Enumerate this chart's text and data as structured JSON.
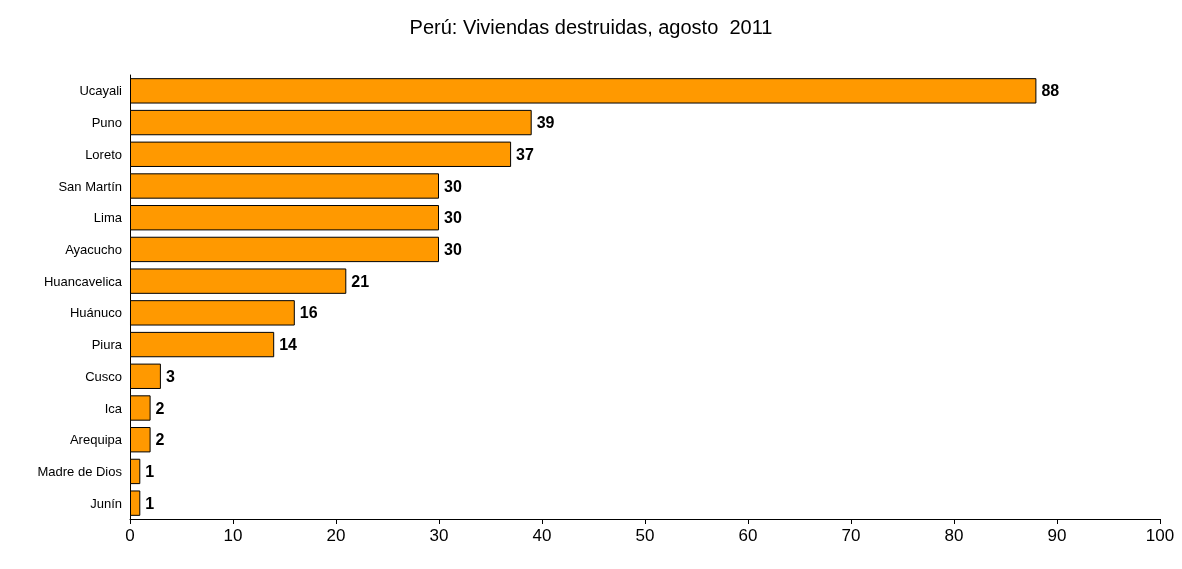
{
  "chart_data": {
    "type": "bar",
    "orientation": "horizontal",
    "title": "Perú: Viviendas destruidas, agosto  2011",
    "categories": [
      "Ucayali",
      "Puno",
      "Loreto",
      "San Martín",
      "Lima",
      "Ayacucho",
      "Huancavelica",
      "Huánuco",
      "Piura",
      "Cusco",
      "Ica",
      "Arequipa",
      "Madre de Dios",
      "Junín"
    ],
    "values": [
      88,
      39,
      37,
      30,
      30,
      30,
      21,
      16,
      14,
      3,
      2,
      2,
      1,
      1
    ],
    "color": "#ff9900",
    "xlim": [
      0,
      100
    ],
    "xticks": [
      0,
      10,
      20,
      30,
      40,
      50,
      60,
      70,
      80,
      90,
      100
    ],
    "grid": false,
    "data_labels": true
  }
}
